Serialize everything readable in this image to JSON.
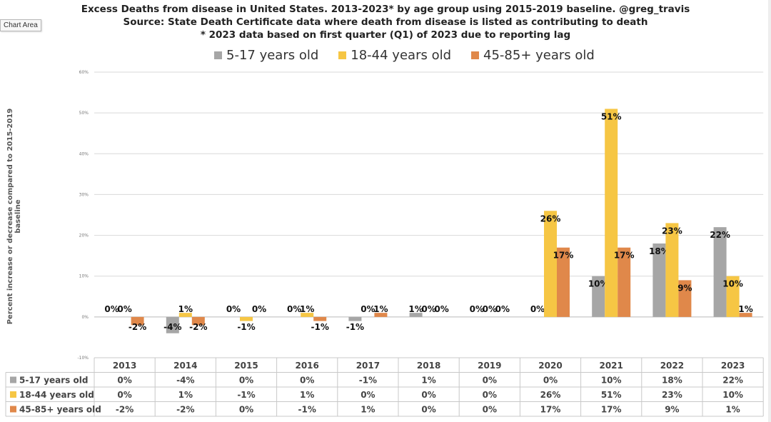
{
  "title_lines": [
    "Excess Deaths from disease in United States.  2013-2023* by age group using 2015-2019 baseline.  @greg_travis",
    "Source: State Death Certificate data where death from disease is listed as contributing to death",
    "* 2023 data based on first quarter (Q1) of 2023 due to reporting lag"
  ],
  "chart_area_tag": "Chart Area",
  "chart_data": {
    "type": "bar",
    "categories": [
      "2013",
      "2014",
      "2015",
      "2016",
      "2017",
      "2018",
      "2019",
      "2020",
      "2021",
      "2022",
      "2023"
    ],
    "series": [
      {
        "name": "5-17 years old",
        "color": "#a6a6a6",
        "values": [
          0,
          -4,
          0,
          0,
          -1,
          1,
          0,
          0,
          10,
          18,
          22
        ],
        "labels": [
          "0%",
          "-4%",
          "0%",
          "0%",
          "-1%",
          "1%",
          "0%",
          "0%",
          "10%",
          "18%",
          "22%"
        ]
      },
      {
        "name": "18-44 years old",
        "color": "#f6c644",
        "values": [
          0,
          1,
          -1,
          1,
          0,
          0,
          0,
          26,
          51,
          23,
          10
        ],
        "labels": [
          "0%",
          "1%",
          "-1%",
          "1%",
          "0%",
          "0%",
          "0%",
          "26%",
          "51%",
          "23%",
          "10%"
        ]
      },
      {
        "name": "45-85+ years old",
        "color": "#e0884a",
        "values": [
          -2,
          -2,
          0,
          -1,
          1,
          0,
          0,
          17,
          17,
          9,
          1
        ],
        "labels": [
          "-2%",
          "-2%",
          "0%",
          "-1%",
          "1%",
          "0%",
          "0%",
          "17%",
          "17%",
          "9%",
          "1%"
        ]
      }
    ],
    "ylabel": "Percent increase or decrease compared to 2015-2019 baseline",
    "ylim": [
      -10,
      60
    ],
    "yticks": [
      -10,
      0,
      10,
      20,
      30,
      40,
      50,
      60
    ],
    "ytick_labels": [
      "-10%",
      "0%",
      "10%",
      "20%",
      "30%",
      "40%",
      "50%",
      "60%"
    ],
    "grid": true,
    "legend_position": "top",
    "data_table": true
  }
}
